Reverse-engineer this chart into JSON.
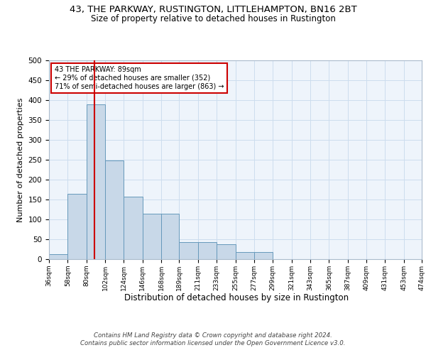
{
  "title1": "43, THE PARKWAY, RUSTINGTON, LITTLEHAMPTON, BN16 2BT",
  "title2": "Size of property relative to detached houses in Rustington",
  "xlabel": "Distribution of detached houses by size in Rustington",
  "ylabel": "Number of detached properties",
  "bin_edges": [
    36,
    58,
    80,
    102,
    124,
    146,
    168,
    189,
    211,
    233,
    255,
    277,
    299,
    321,
    343,
    365,
    387,
    409,
    431,
    453,
    474
  ],
  "bar_heights": [
    13,
    165,
    390,
    248,
    157,
    115,
    115,
    43,
    43,
    38,
    18,
    18,
    0,
    0,
    0,
    0,
    0,
    0,
    0,
    0
  ],
  "bar_facecolor": "#c8d8e8",
  "bar_edgecolor": "#6699bb",
  "grid_color": "#ccddee",
  "bg_color": "#eef4fb",
  "vline_x": 89,
  "vline_color": "#cc0000",
  "annotation_text": "43 THE PARKWAY: 89sqm\n← 29% of detached houses are smaller (352)\n71% of semi-detached houses are larger (863) →",
  "annotation_box_color": "#ffffff",
  "annotation_border_color": "#cc0000",
  "ylim": [
    0,
    500
  ],
  "yticks": [
    0,
    50,
    100,
    150,
    200,
    250,
    300,
    350,
    400,
    450,
    500
  ],
  "footer_text": "Contains HM Land Registry data © Crown copyright and database right 2024.\nContains public sector information licensed under the Open Government Licence v3.0.",
  "title1_fontsize": 9.5,
  "title2_fontsize": 8.5
}
